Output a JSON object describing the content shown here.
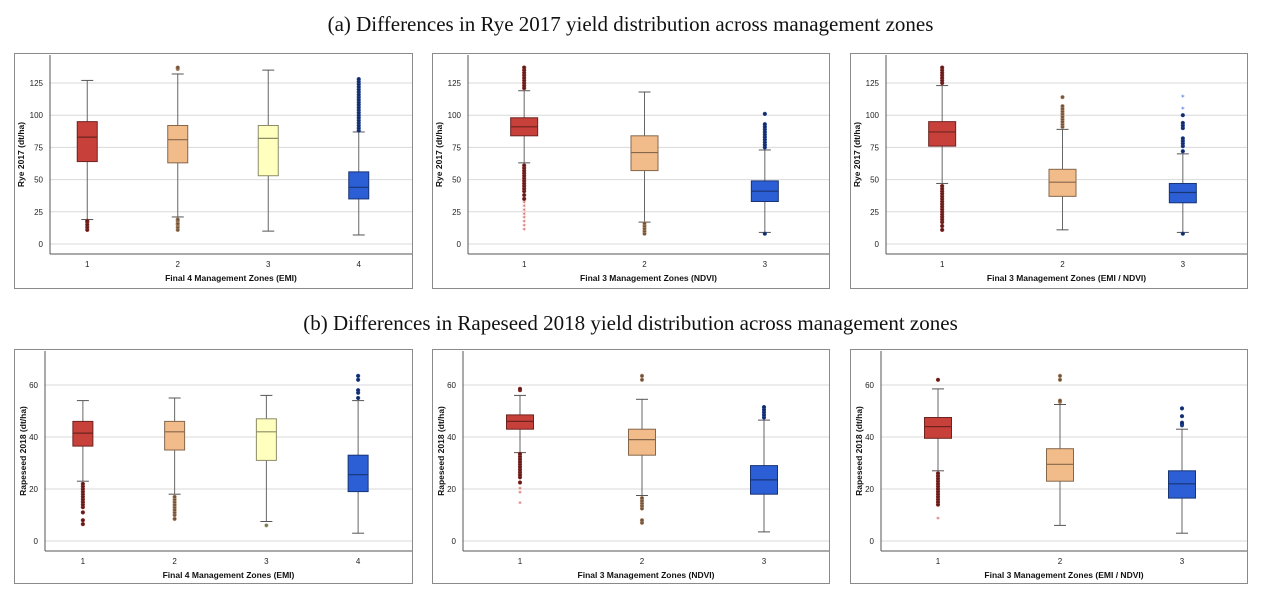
{
  "titles": {
    "a": "(a) Differences in Rye 2017 yield distribution across management zones",
    "b": "(b) Differences in Rapeseed 2018 yield distribution across management zones"
  },
  "colors": {
    "zone_red": "#c8403a",
    "zone_peach": "#f2bb8a",
    "zone_yellow": "#ffffbe",
    "zone_blue": "#2c5fd5",
    "grid": "#d9d9d9",
    "axis": "#555555",
    "frame": "#8a8a8a"
  },
  "chart_data": [
    {
      "type": "box",
      "id": "rye-emi",
      "row": "a",
      "xlabel": "Final 4 Management Zones (EMI)",
      "ylabel": "Rye 2017 (dt/ha)",
      "yticks": [
        0,
        25,
        50,
        75,
        100,
        125
      ],
      "ylim": [
        -7,
        140
      ],
      "grid": true,
      "categories": [
        "1",
        "2",
        "3",
        "4"
      ],
      "boxes": [
        {
          "zone": "1",
          "color": "zone_red",
          "whisker_low": 19,
          "q1": 64,
          "median": 83,
          "q3": 95,
          "whisker_high": 127,
          "outliers": [
            11,
            13,
            15,
            17,
            18
          ]
        },
        {
          "zone": "2",
          "color": "zone_peach",
          "whisker_low": 21,
          "q1": 63,
          "median": 81,
          "q3": 92,
          "whisker_high": 132,
          "outliers": [
            11,
            13,
            15,
            16,
            18,
            19,
            136,
            137
          ]
        },
        {
          "zone": "3",
          "color": "zone_yellow",
          "whisker_low": 10,
          "q1": 53,
          "median": 82,
          "q3": 92,
          "whisker_high": 135,
          "outliers": []
        },
        {
          "zone": "4",
          "color": "zone_blue",
          "whisker_low": 7,
          "q1": 35,
          "median": 44,
          "q3": 56,
          "whisker_high": 87,
          "outliers": [
            88,
            90,
            92,
            94,
            96,
            98,
            100,
            102,
            104,
            106,
            108,
            110,
            112,
            114,
            116,
            118,
            120,
            122,
            124,
            126,
            128
          ]
        }
      ]
    },
    {
      "type": "box",
      "id": "rye-ndvi",
      "row": "a",
      "xlabel": "Final 3 Management Zones (NDVI)",
      "ylabel": "Rye 2017 (dt/ha)",
      "yticks": [
        0,
        25,
        50,
        75,
        100,
        125
      ],
      "ylim": [
        -7,
        140
      ],
      "grid": true,
      "categories": [
        "1",
        "2",
        "3"
      ],
      "boxes": [
        {
          "zone": "1",
          "color": "zone_red",
          "whisker_low": 63,
          "q1": 84,
          "median": 91,
          "q3": 98,
          "whisker_high": 119,
          "outliers": [
            11,
            14,
            17,
            20,
            23,
            26,
            29,
            32,
            35,
            38,
            41,
            43,
            45,
            47,
            49,
            51,
            53,
            55,
            57,
            59,
            61,
            121,
            123,
            125,
            127,
            129,
            131,
            133,
            135,
            137
          ]
        },
        {
          "zone": "2",
          "color": "zone_peach",
          "whisker_low": 17,
          "q1": 57,
          "median": 71,
          "q3": 84,
          "whisker_high": 118,
          "outliers": [
            8,
            10,
            12,
            14,
            16
          ]
        },
        {
          "zone": "3",
          "color": "zone_blue",
          "whisker_low": 9,
          "q1": 33,
          "median": 41,
          "q3": 49,
          "whisker_high": 73,
          "outliers": [
            8,
            75,
            77,
            79,
            81,
            83,
            85,
            87,
            89,
            91,
            93,
            101
          ]
        }
      ]
    },
    {
      "type": "box",
      "id": "rye-emi-ndvi",
      "row": "a",
      "xlabel": "Final 3 Management Zones (EMI / NDVI)",
      "ylabel": "Rye 2017 (dt/ha)",
      "yticks": [
        0,
        25,
        50,
        75,
        100,
        125
      ],
      "ylim": [
        -7,
        140
      ],
      "grid": true,
      "categories": [
        "1",
        "2",
        "3"
      ],
      "boxes": [
        {
          "zone": "1",
          "color": "zone_red",
          "whisker_low": 47,
          "q1": 76,
          "median": 87,
          "q3": 95,
          "whisker_high": 123,
          "outliers": [
            11,
            14,
            17,
            19,
            21,
            23,
            25,
            27,
            29,
            31,
            33,
            35,
            37,
            39,
            41,
            43,
            45,
            125,
            127,
            129,
            131,
            133,
            135,
            137
          ]
        },
        {
          "zone": "2",
          "color": "zone_peach",
          "whisker_low": 11,
          "q1": 37,
          "median": 48,
          "q3": 58,
          "whisker_high": 89,
          "outliers": [
            91,
            93,
            95,
            97,
            99,
            101,
            103,
            105,
            107,
            114
          ]
        },
        {
          "zone": "3",
          "color": "zone_blue",
          "whisker_low": 9,
          "q1": 32,
          "median": 40,
          "q3": 47,
          "whisker_high": 70,
          "outliers": [
            8,
            72,
            76,
            78,
            80,
            82,
            90,
            92,
            94,
            100,
            105,
            114
          ]
        }
      ]
    },
    {
      "type": "box",
      "id": "rapeseed-emi",
      "row": "b",
      "xlabel": "Final 4 Management Zones (EMI)",
      "ylabel": "Rapeseed 2018 (dt/ha)",
      "yticks": [
        0,
        20,
        40,
        60
      ],
      "ylim": [
        -4,
        74
      ],
      "grid": true,
      "categories": [
        "1",
        "2",
        "3",
        "4"
      ],
      "boxes": [
        {
          "zone": "1",
          "color": "zone_red",
          "whisker_low": 23,
          "q1": 36.5,
          "median": 41.5,
          "q3": 46,
          "whisker_high": 54,
          "outliers": [
            6.5,
            8,
            11,
            13,
            14,
            15,
            16,
            17,
            18,
            19,
            20,
            21,
            22
          ]
        },
        {
          "zone": "2",
          "color": "zone_peach",
          "whisker_low": 18,
          "q1": 35,
          "median": 42,
          "q3": 46,
          "whisker_high": 55,
          "outliers": [
            8.5,
            10,
            11,
            12,
            13,
            14,
            15,
            16,
            17
          ]
        },
        {
          "zone": "3",
          "color": "zone_yellow",
          "whisker_low": 7.5,
          "q1": 31,
          "median": 42,
          "q3": 47,
          "whisker_high": 56,
          "outliers": [
            6
          ]
        },
        {
          "zone": "4",
          "color": "zone_blue",
          "whisker_low": 3,
          "q1": 19,
          "median": 25.5,
          "q3": 33,
          "whisker_high": 54,
          "outliers": [
            55,
            57,
            58,
            62,
            63.5
          ]
        }
      ]
    },
    {
      "type": "box",
      "id": "rapeseed-ndvi",
      "row": "b",
      "xlabel": "Final 3 Management Zones (NDVI)",
      "ylabel": "Rapeseed 2018 (dt/ha)",
      "yticks": [
        0,
        20,
        40,
        60
      ],
      "ylim": [
        -4,
        74
      ],
      "grid": true,
      "categories": [
        "1",
        "2",
        "3"
      ],
      "boxes": [
        {
          "zone": "1",
          "color": "zone_red",
          "whisker_low": 34,
          "q1": 43,
          "median": 46,
          "q3": 48.5,
          "whisker_high": 56,
          "outliers": [
            14.5,
            18.5,
            20,
            22.5,
            24.5,
            25.5,
            26.5,
            27.5,
            28.5,
            29.5,
            30.5,
            31.5,
            32.5,
            33.5,
            58,
            58.5
          ]
        },
        {
          "zone": "2",
          "color": "zone_peach",
          "whisker_low": 17.5,
          "q1": 33,
          "median": 39,
          "q3": 43,
          "whisker_high": 54.5,
          "outliers": [
            7,
            8,
            12.5,
            13.5,
            14.5,
            15.5,
            16.5,
            62,
            63.5
          ]
        },
        {
          "zone": "3",
          "color": "zone_blue",
          "whisker_low": 3.5,
          "q1": 18,
          "median": 23.5,
          "q3": 29,
          "whisker_high": 46.5,
          "outliers": [
            47.5,
            48.5,
            49.5,
            50.5,
            51.5
          ]
        }
      ]
    },
    {
      "type": "box",
      "id": "rapeseed-emi-ndvi",
      "row": "b",
      "xlabel": "Final 3 Management Zones (EMI / NDVI)",
      "ylabel": "Rapeseed 2018 (dt/ha)",
      "yticks": [
        0,
        20,
        40,
        60
      ],
      "ylim": [
        -4,
        74
      ],
      "grid": true,
      "categories": [
        "1",
        "2",
        "3"
      ],
      "boxes": [
        {
          "zone": "1",
          "color": "zone_red",
          "whisker_low": 27,
          "q1": 39.5,
          "median": 44,
          "q3": 47.5,
          "whisker_high": 58.5,
          "outliers": [
            8.5,
            14,
            15,
            16,
            17,
            18,
            19,
            20,
            21,
            22,
            23,
            24,
            25,
            26,
            62
          ]
        },
        {
          "zone": "2",
          "color": "zone_peach",
          "whisker_low": 6,
          "q1": 23,
          "median": 29.5,
          "q3": 35.5,
          "whisker_high": 52.5,
          "outliers": [
            53.5,
            54,
            62,
            63.5
          ]
        },
        {
          "zone": "3",
          "color": "zone_blue",
          "whisker_low": 3,
          "q1": 16.5,
          "median": 22,
          "q3": 27,
          "whisker_high": 43,
          "outliers": [
            44.5,
            45,
            45.5,
            48,
            51
          ]
        }
      ]
    }
  ]
}
